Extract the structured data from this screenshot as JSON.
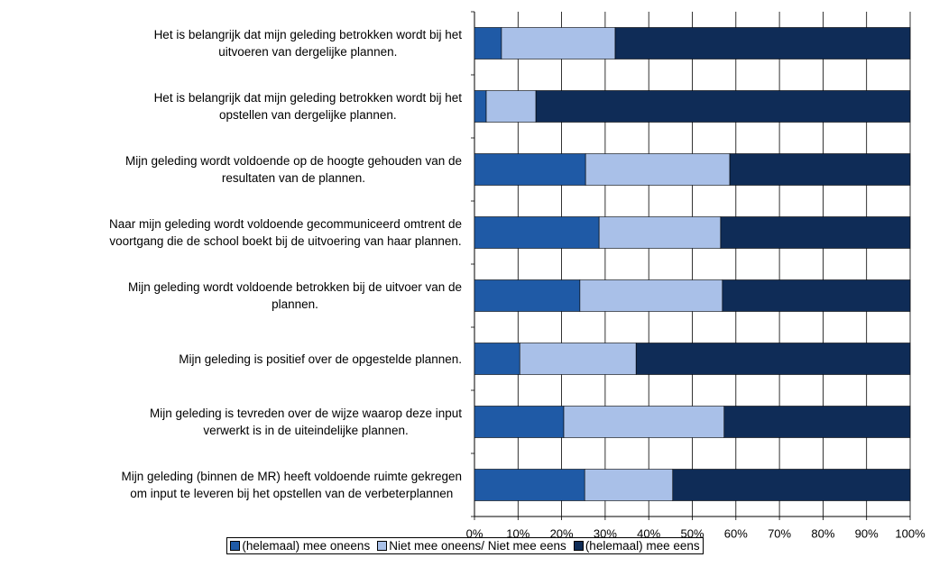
{
  "chart_data": {
    "type": "stacked-bar-horizontal",
    "categories": [
      "Het is belangrijk dat mijn geleding betrokken wordt bij het\nuitvoeren van dergelijke plannen.",
      "Het is belangrijk dat mijn geleding betrokken wordt bij het\nopstellen van dergelijke plannen.",
      "Mijn geleding wordt voldoende op de hoogte gehouden van de\nresultaten van de plannen.",
      "Naar mijn geleding wordt voldoende gecommuniceerd omtrent de\nvoortgang die de school boekt bij de uitvoering van haar plannen.",
      "Mijn geleding wordt voldoende betrokken bij de uitvoer van de\nplannen.",
      "Mijn geleding is positief over de opgestelde plannen.",
      "Mijn geleding is tevreden over de wijze waarop deze input\nverwerkt is in de uiteindelijke plannen.",
      "Mijn geleding (binnen de MR) heeft voldoende ruimte gekregen\nom input te leveren bij het opstellen van de verbeterplannen"
    ],
    "series": [
      {
        "name": "(helemaal) mee oneens",
        "color": "#1f5aa6",
        "values": [
          6.2,
          2.7,
          25.5,
          28.6,
          24.2,
          10.4,
          20.5,
          25.3
        ]
      },
      {
        "name": "Niet mee oneens/ Niet mee eens",
        "color": "#a9c0e8",
        "values": [
          26.1,
          11.4,
          33.1,
          27.9,
          32.7,
          26.7,
          36.8,
          20.2
        ]
      },
      {
        "name": "(helemaal) mee eens",
        "color": "#0f2c57",
        "values": [
          67.7,
          85.9,
          41.4,
          43.5,
          43.1,
          62.9,
          42.7,
          54.5
        ]
      }
    ],
    "xlim": [
      0,
      100
    ],
    "xticks": [
      {
        "value": 0,
        "label": "0%"
      },
      {
        "value": 10,
        "label": "10%"
      },
      {
        "value": 20,
        "label": "20%"
      },
      {
        "value": 30,
        "label": "30%"
      },
      {
        "value": 40,
        "label": "40%"
      },
      {
        "value": 50,
        "label": "50%"
      },
      {
        "value": 60,
        "label": "60%"
      },
      {
        "value": 70,
        "label": "70%"
      },
      {
        "value": 80,
        "label": "80%"
      },
      {
        "value": 90,
        "label": "90%"
      },
      {
        "value": 100,
        "label": "100%"
      }
    ],
    "grid": true,
    "legend": "bottom"
  }
}
